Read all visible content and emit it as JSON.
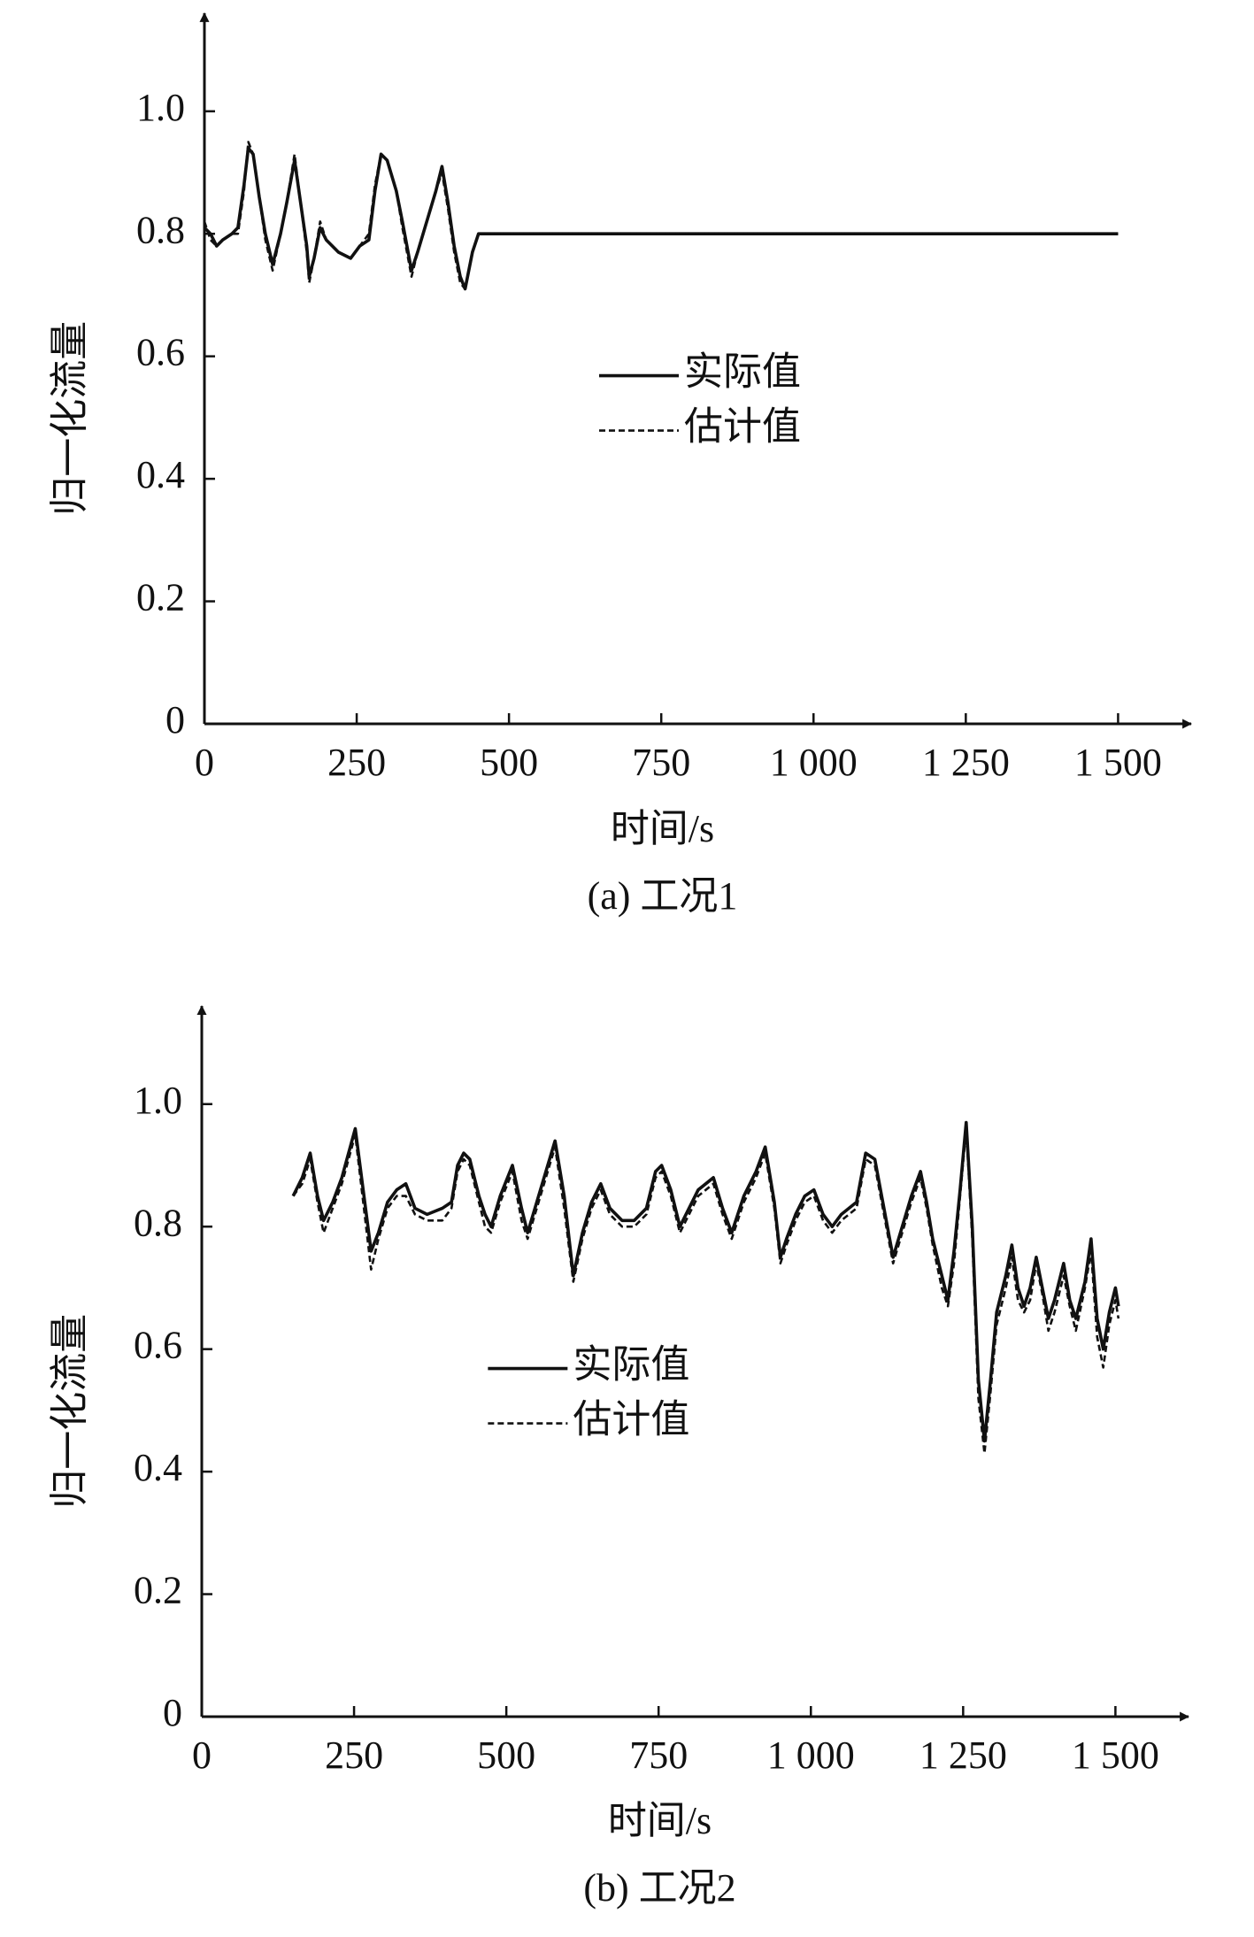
{
  "chart_data": [
    {
      "type": "line",
      "caption": "(a) 工况1",
      "xlabel": "时间/s",
      "ylabel": "归一化流量",
      "xlim": [
        0,
        1620
      ],
      "ylim": [
        0,
        1.16
      ],
      "xticks": [
        0,
        250,
        500,
        750,
        {
          "value": 1000,
          "label": "1 000"
        },
        {
          "value": 1250,
          "label": "1 250"
        },
        {
          "value": 1500,
          "label": "1 500"
        }
      ],
      "yticks": [
        0,
        0.2,
        0.4,
        0.6,
        0.8,
        {
          "value": 1,
          "label": "1.0"
        }
      ],
      "legend": "center",
      "x": [
        0,
        10,
        20,
        30,
        45,
        55,
        65,
        72,
        80,
        90,
        100,
        112,
        125,
        135,
        148,
        158,
        168,
        172,
        180,
        190,
        200,
        220,
        240,
        255,
        270,
        280,
        290,
        300,
        315,
        325,
        340,
        350,
        365,
        380,
        390,
        400,
        410,
        420,
        428,
        440,
        450,
        1500
      ],
      "series": [
        {
          "name": "实际值",
          "color": "#111111",
          "style": "solid",
          "values": [
            0.81,
            0.8,
            0.78,
            0.79,
            0.8,
            0.81,
            0.88,
            0.94,
            0.93,
            0.86,
            0.8,
            0.75,
            0.8,
            0.85,
            0.92,
            0.85,
            0.78,
            0.73,
            0.76,
            0.81,
            0.79,
            0.77,
            0.76,
            0.78,
            0.79,
            0.87,
            0.93,
            0.92,
            0.87,
            0.82,
            0.74,
            0.77,
            0.82,
            0.87,
            0.91,
            0.85,
            0.78,
            0.73,
            0.71,
            0.77,
            0.8,
            0.8
          ]
        },
        {
          "name": "估计值",
          "color": "#111111",
          "style": "dashed",
          "values": [
            0.82,
            0.79,
            0.78,
            0.79,
            0.8,
            0.8,
            0.87,
            0.95,
            0.93,
            0.86,
            0.79,
            0.74,
            0.8,
            0.85,
            0.93,
            0.85,
            0.77,
            0.72,
            0.76,
            0.82,
            0.79,
            0.77,
            0.76,
            0.78,
            0.8,
            0.88,
            0.93,
            0.92,
            0.87,
            0.81,
            0.73,
            0.77,
            0.82,
            0.87,
            0.9,
            0.84,
            0.77,
            0.72,
            0.71,
            0.77,
            0.8,
            0.8
          ]
        }
      ]
    },
    {
      "type": "line",
      "caption": "(b) 工况2",
      "xlabel": "时间/s",
      "ylabel": "归一化流量",
      "xlim": [
        0,
        1620
      ],
      "ylim": [
        0,
        1.16
      ],
      "xticks": [
        0,
        250,
        500,
        750,
        {
          "value": 1000,
          "label": "1 000"
        },
        {
          "value": 1250,
          "label": "1 250"
        },
        {
          "value": 1500,
          "label": "1 500"
        }
      ],
      "yticks": [
        0,
        0.2,
        0.4,
        0.6,
        0.8,
        {
          "value": 1,
          "label": "1.0"
        }
      ],
      "legend": "center-left",
      "x": [
        150,
        165,
        178,
        190,
        200,
        215,
        230,
        252,
        265,
        278,
        290,
        305,
        320,
        335,
        350,
        370,
        395,
        410,
        420,
        430,
        440,
        455,
        465,
        475,
        490,
        510,
        525,
        535,
        550,
        565,
        580,
        595,
        610,
        625,
        640,
        655,
        670,
        690,
        710,
        730,
        745,
        755,
        770,
        785,
        800,
        815,
        840,
        855,
        870,
        890,
        910,
        925,
        940,
        950,
        960,
        975,
        990,
        1005,
        1020,
        1035,
        1050,
        1075,
        1090,
        1105,
        1120,
        1135,
        1150,
        1165,
        1180,
        1190,
        1200,
        1215,
        1225,
        1235,
        1245,
        1255,
        1265,
        1275,
        1285,
        1295,
        1305,
        1320,
        1330,
        1340,
        1350,
        1360,
        1370,
        1380,
        1390,
        1400,
        1415,
        1425,
        1435,
        1450,
        1460,
        1470,
        1480,
        1490,
        1500,
        1505
      ],
      "series": [
        {
          "name": "实际值",
          "color": "#111111",
          "style": "solid",
          "values": [
            0.85,
            0.88,
            0.92,
            0.85,
            0.81,
            0.84,
            0.88,
            0.96,
            0.86,
            0.76,
            0.79,
            0.84,
            0.86,
            0.87,
            0.83,
            0.82,
            0.83,
            0.84,
            0.9,
            0.92,
            0.91,
            0.85,
            0.82,
            0.8,
            0.85,
            0.9,
            0.83,
            0.79,
            0.84,
            0.89,
            0.94,
            0.85,
            0.72,
            0.79,
            0.84,
            0.87,
            0.83,
            0.81,
            0.81,
            0.83,
            0.89,
            0.9,
            0.86,
            0.8,
            0.83,
            0.86,
            0.88,
            0.83,
            0.79,
            0.85,
            0.89,
            0.93,
            0.84,
            0.75,
            0.78,
            0.82,
            0.85,
            0.86,
            0.82,
            0.8,
            0.82,
            0.84,
            0.92,
            0.91,
            0.83,
            0.75,
            0.8,
            0.85,
            0.89,
            0.84,
            0.78,
            0.72,
            0.68,
            0.76,
            0.86,
            0.97,
            0.8,
            0.55,
            0.45,
            0.55,
            0.66,
            0.72,
            0.77,
            0.7,
            0.67,
            0.7,
            0.75,
            0.7,
            0.65,
            0.68,
            0.74,
            0.68,
            0.65,
            0.71,
            0.78,
            0.65,
            0.6,
            0.66,
            0.7,
            0.67
          ]
        },
        {
          "name": "估计值",
          "color": "#111111",
          "style": "dashed",
          "values": [
            0.85,
            0.87,
            0.91,
            0.84,
            0.79,
            0.83,
            0.87,
            0.95,
            0.84,
            0.73,
            0.78,
            0.83,
            0.85,
            0.85,
            0.82,
            0.81,
            0.81,
            0.83,
            0.89,
            0.91,
            0.9,
            0.84,
            0.8,
            0.79,
            0.84,
            0.89,
            0.81,
            0.78,
            0.83,
            0.88,
            0.93,
            0.83,
            0.71,
            0.78,
            0.83,
            0.86,
            0.82,
            0.8,
            0.8,
            0.82,
            0.88,
            0.89,
            0.85,
            0.79,
            0.82,
            0.85,
            0.87,
            0.82,
            0.78,
            0.84,
            0.88,
            0.92,
            0.83,
            0.74,
            0.77,
            0.81,
            0.84,
            0.85,
            0.81,
            0.79,
            0.81,
            0.83,
            0.91,
            0.9,
            0.82,
            0.74,
            0.79,
            0.84,
            0.88,
            0.83,
            0.77,
            0.7,
            0.67,
            0.74,
            0.85,
            0.96,
            0.78,
            0.52,
            0.43,
            0.53,
            0.64,
            0.7,
            0.75,
            0.68,
            0.66,
            0.68,
            0.74,
            0.69,
            0.63,
            0.66,
            0.72,
            0.67,
            0.63,
            0.7,
            0.76,
            0.62,
            0.57,
            0.64,
            0.68,
            0.65
          ]
        }
      ]
    }
  ]
}
